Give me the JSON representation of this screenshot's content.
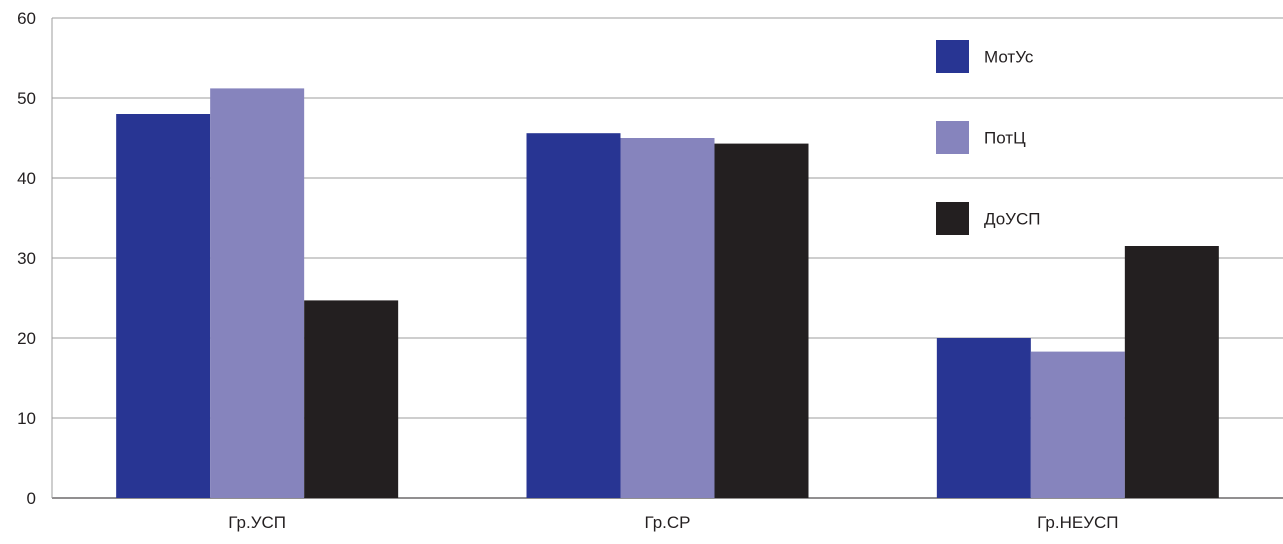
{
  "chart_data": {
    "type": "bar",
    "title": "",
    "xlabel": "",
    "ylabel": "",
    "ylim": [
      0,
      60
    ],
    "yticks": [
      0,
      10,
      20,
      30,
      40,
      50,
      60
    ],
    "grid": true,
    "legend_position": "top-right",
    "categories": [
      "Гр.УСП",
      "Гр.СР",
      "Гр.НЕУСП"
    ],
    "series": [
      {
        "name": "МотУс",
        "color": "#283593",
        "values": [
          48,
          45.6,
          20
        ]
      },
      {
        "name": "ПотЦ",
        "color": "#8684bd",
        "values": [
          51.2,
          45,
          18.3
        ]
      },
      {
        "name": "ДоУСП",
        "color": "#231f20",
        "values": [
          24.7,
          44.3,
          31.5
        ]
      }
    ]
  }
}
